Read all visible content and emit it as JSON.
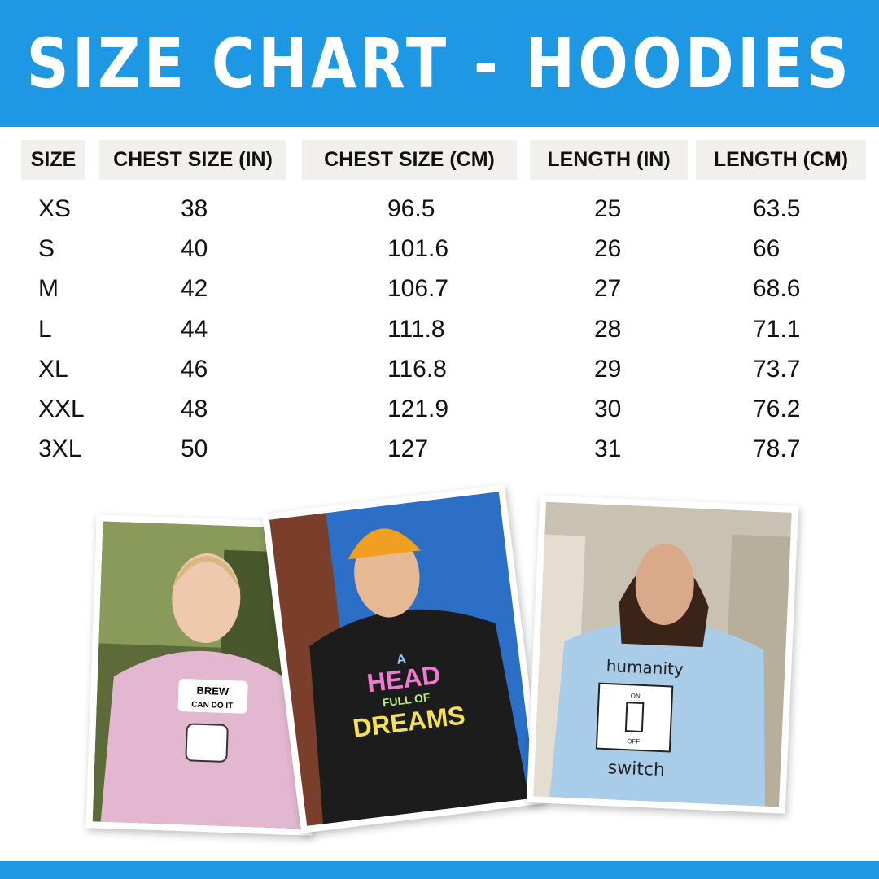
{
  "title": "SIZE CHART - HOODIES",
  "accent_color": "#1e98e3",
  "table": {
    "headers": [
      "SIZE",
      "CHEST SIZE (IN)",
      "CHEST SIZE (CM)",
      "LENGTH (IN)",
      "LENGTH (CM)"
    ],
    "rows": [
      [
        "XS",
        "38",
        "96.5",
        "25",
        "63.5"
      ],
      [
        "S",
        "40",
        "101.6",
        "26",
        "66"
      ],
      [
        "M",
        "42",
        "106.7",
        "27",
        "68.6"
      ],
      [
        "L",
        "44",
        "111.8",
        "28",
        "71.1"
      ],
      [
        "XL",
        "46",
        "116.8",
        "29",
        "73.7"
      ],
      [
        "XXL",
        "48",
        "121.9",
        "30",
        "76.2"
      ],
      [
        "3XL",
        "50",
        "127",
        "31",
        "78.7"
      ]
    ]
  },
  "photos": [
    {
      "hoodie_color": "#e3b7cf",
      "print": [
        "BREW",
        "CAN DO IT"
      ]
    },
    {
      "hoodie_color": "#1c1c1c",
      "print": [
        "A",
        "HEAD",
        "FULL OF",
        "DREAMS"
      ]
    },
    {
      "hoodie_color": "#a9cde9",
      "print": [
        "humanity",
        "ON",
        "OFF",
        "switch"
      ]
    }
  ]
}
